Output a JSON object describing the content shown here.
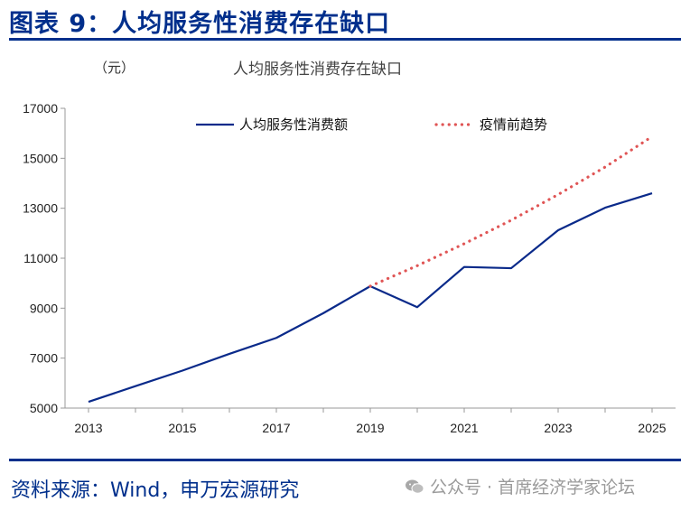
{
  "figure": {
    "title": "图表 9：人均服务性消费存在缺口",
    "source": "资料来源：Wind，申万宏源研究",
    "watermark": "公众号 · 首席经济学家论坛"
  },
  "colors": {
    "accent": "#002F8C",
    "actual_line": "#0A2A8A",
    "trend_line": "#E05555"
  },
  "chart_data": {
    "type": "line",
    "title": "人均服务性消费存在缺口",
    "unit": "（元）",
    "xlabel": "",
    "ylabel": "",
    "xlim": [
      2013,
      2025
    ],
    "ylim": [
      5000,
      17000
    ],
    "x_ticks": [
      "2013",
      "2015",
      "2017",
      "2019",
      "2021",
      "2023",
      "2025"
    ],
    "y_ticks": [
      "5000",
      "7000",
      "9000",
      "11000",
      "13000",
      "15000",
      "17000"
    ],
    "legend_position": "top",
    "series": [
      {
        "name": "人均服务性消费额",
        "style": "solid",
        "x": [
          2013,
          2014,
          2015,
          2016,
          2017,
          2018,
          2019,
          2020,
          2021,
          2022,
          2023,
          2024,
          2025
        ],
        "y": [
          5250,
          5880,
          6500,
          7170,
          7810,
          8800,
          9880,
          9040,
          10650,
          10600,
          12120,
          13020,
          13600
        ]
      },
      {
        "name": "疫情前趋势",
        "style": "dotted",
        "x": [
          2019,
          2020,
          2021,
          2022,
          2023,
          2024,
          2025
        ],
        "y": [
          9880,
          10700,
          11580,
          12520,
          13550,
          14650,
          15870
        ]
      }
    ]
  }
}
